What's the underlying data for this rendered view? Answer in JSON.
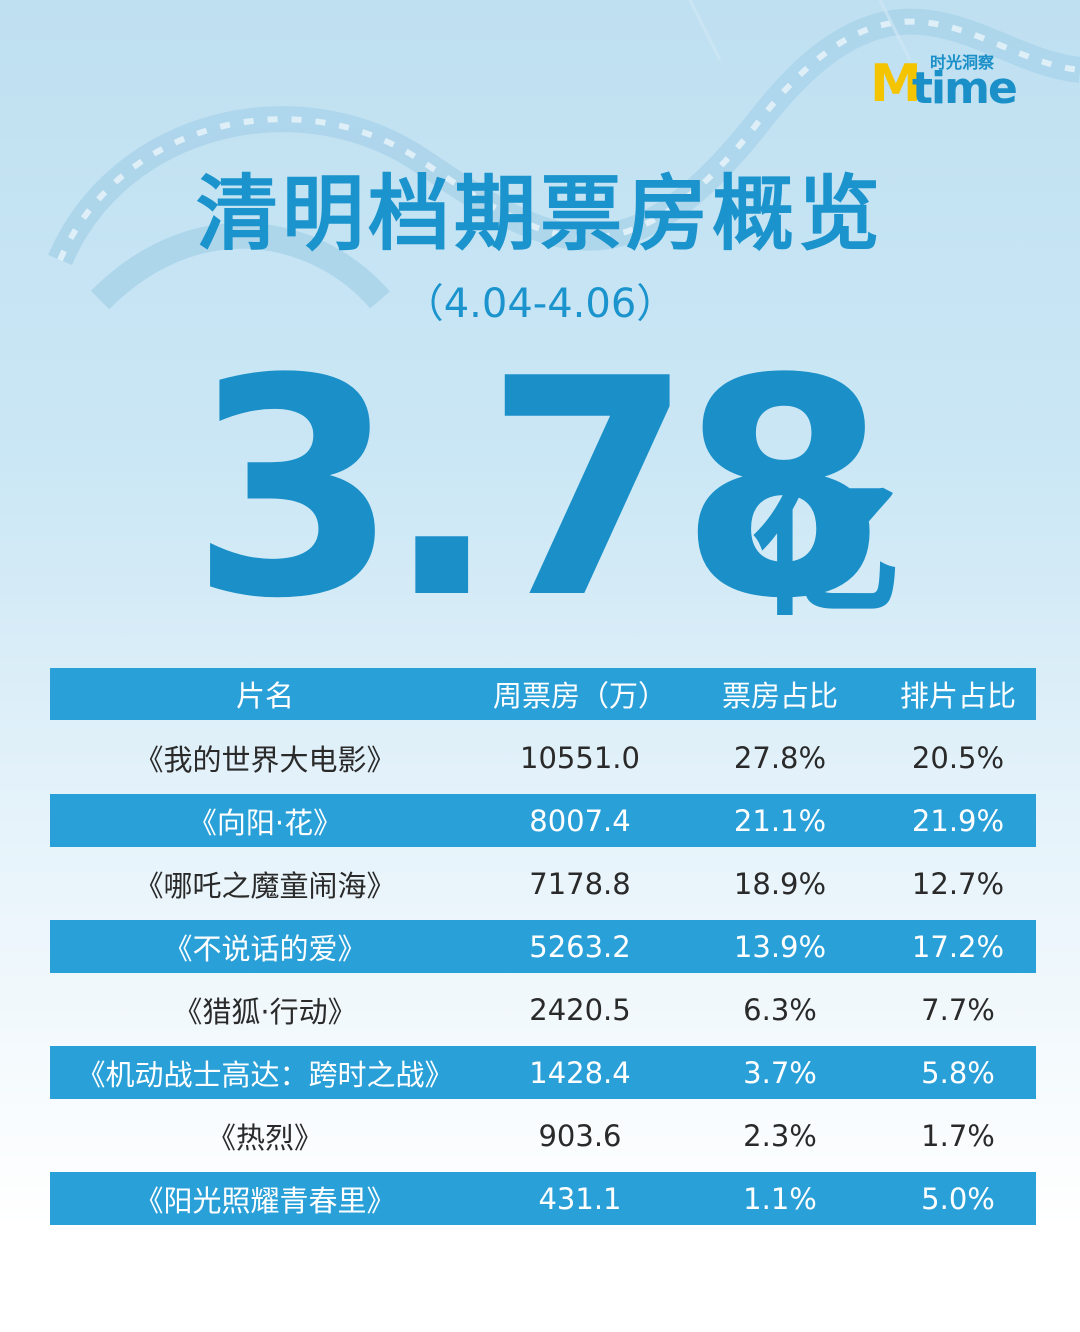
{
  "logo": {
    "brand_m": "M",
    "brand_rest": "time",
    "tagline": "时光洞察"
  },
  "header": {
    "title": "清明档期票房概览",
    "subtitle": "（4.04-4.06）",
    "total": "3.78",
    "unit": "亿"
  },
  "table": {
    "columns": [
      "片名",
      "周票房（万）",
      "票房占比",
      "排片占比"
    ],
    "rows": [
      [
        "《我的世界大电影》",
        "10551.0",
        "27.8%",
        "20.5%"
      ],
      [
        "《向阳·花》",
        "8007.4",
        "21.1%",
        "21.9%"
      ],
      [
        "《哪吒之魔童闹海》",
        "7178.8",
        "18.9%",
        "12.7%"
      ],
      [
        "《不说话的爱》",
        "5263.2",
        "13.9%",
        "17.2%"
      ],
      [
        "《猎狐·行动》",
        "2420.5",
        "6.3%",
        "7.7%"
      ],
      [
        "《机动战士高达：跨时之战》",
        "1428.4",
        "3.7%",
        "5.8%"
      ],
      [
        "《热烈》",
        "903.6",
        "2.3%",
        "1.7%"
      ],
      [
        "《阳光照耀青春里》",
        "431.1",
        "1.1%",
        "5.0%"
      ]
    ]
  }
}
